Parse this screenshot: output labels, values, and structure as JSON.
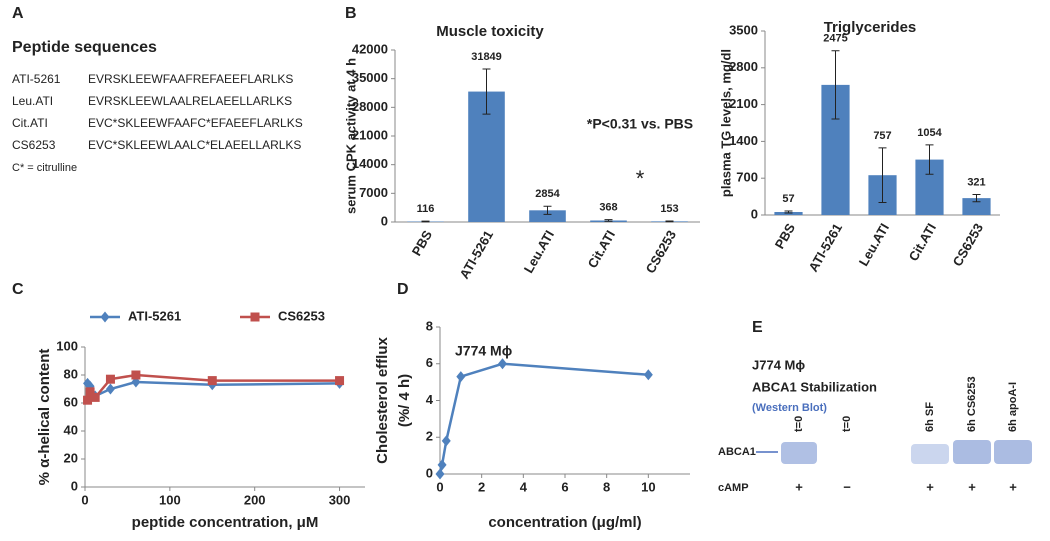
{
  "panel_labels": [
    "A",
    "B",
    "C",
    "D",
    "E"
  ],
  "panel_a": {
    "title": "Peptide sequences",
    "rows": [
      [
        "ATI-5261",
        "EVRSKLEEWFAAFREFAEEFLARLKS"
      ],
      [
        "Leu.ATI",
        "EVRSKLEEWLAALRELAEELLARLKS"
      ],
      [
        "Cit.ATI",
        "EVC*SKLEEWFAAFC*EFAEEFLARLKS"
      ],
      [
        "CS6253",
        "EVC*SKLEEWLAALC*ELAEELLARLKS"
      ]
    ],
    "note": "C* = citrulline"
  },
  "panel_e": {
    "cell": "J774 Mϕ",
    "title": "ABCA1 Stabilization",
    "subtitle": "(Western Blot)",
    "lanes": [
      "t=0",
      "t=0",
      "6h SF",
      "6h CS6253",
      "6h apoA-I"
    ],
    "band_label": "ABCA1",
    "row_label": "cAMP",
    "camp": [
      "+",
      "−",
      "+",
      "+",
      "+"
    ]
  },
  "chart_data": [
    {
      "type": "bar",
      "title": "Muscle toxicity",
      "ylabel": "serum CPK activity at 4 h",
      "categories": [
        "PBS",
        "ATI-5261",
        "Leu.ATI",
        "Cit.ATI",
        "CS6253"
      ],
      "values": [
        116,
        31849,
        2854,
        368,
        153
      ],
      "errors": [
        100,
        5500,
        1000,
        200,
        100
      ],
      "color": "#4f81bd",
      "ylim": [
        0,
        42000
      ],
      "yticks": [
        0,
        7000,
        14000,
        21000,
        28000,
        35000,
        42000
      ],
      "annotations": [
        "*P<0.31 vs. PBS",
        "*"
      ]
    },
    {
      "type": "bar",
      "title": "Triglycerides",
      "ylabel": "plasma TG levels, mg/dl",
      "categories": [
        "PBS",
        "ATI-5261",
        "Leu.ATI",
        "Cit.ATI",
        "CS6253"
      ],
      "values": [
        57,
        2475,
        757,
        1054,
        321
      ],
      "errors": [
        20,
        650,
        520,
        280,
        70
      ],
      "color": "#4f81bd",
      "ylim": [
        0,
        3500
      ],
      "yticks": [
        0,
        700,
        1400,
        2100,
        2800,
        3500
      ]
    },
    {
      "type": "line",
      "ylabel": "% α-helical content",
      "xlabel": "peptide concentration, μM",
      "x": [
        3,
        6,
        12,
        30,
        60,
        150,
        300
      ],
      "series": [
        {
          "name": "ATI-5261",
          "color": "#4f81bd",
          "marker": "diamond",
          "values": [
            74,
            72,
            65,
            70,
            75,
            73,
            74
          ]
        },
        {
          "name": "CS6253",
          "color": "#c0504d",
          "marker": "square",
          "values": [
            62,
            68,
            64,
            77,
            80,
            76,
            76
          ]
        }
      ],
      "xlim": [
        0,
        330
      ],
      "xticks": [
        0,
        100,
        200,
        300
      ],
      "ylim": [
        0,
        100
      ],
      "yticks": [
        0,
        20,
        40,
        60,
        80,
        100
      ],
      "legend": "top"
    },
    {
      "type": "line",
      "ylabel": [
        "Cholesterol efflux",
        "(%/ 4 h)"
      ],
      "xlabel": "concentration (μg/ml)",
      "annotations": [
        "J774 Mϕ"
      ],
      "x": [
        0,
        0.1,
        0.3,
        1,
        3,
        10
      ],
      "series": [
        {
          "color": "#4f81bd",
          "marker": "diamond",
          "values": [
            0,
            0.5,
            1.8,
            5.3,
            6,
            5.4
          ]
        }
      ],
      "xlim": [
        0,
        12
      ],
      "xticks": [
        0,
        2,
        4,
        6,
        8,
        10
      ],
      "ylim": [
        0,
        8
      ],
      "yticks": [
        0,
        2,
        4,
        6,
        8
      ]
    }
  ]
}
